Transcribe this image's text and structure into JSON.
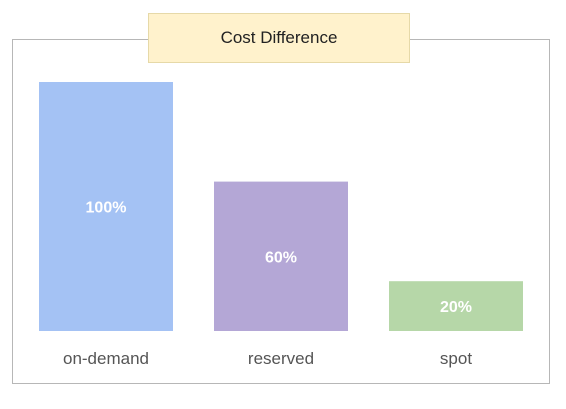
{
  "chart_data": {
    "type": "bar",
    "title": "Cost Difference",
    "categories": [
      "on-demand",
      "reserved",
      "spot"
    ],
    "values": [
      100,
      60,
      20
    ],
    "value_labels": [
      "100%",
      "60%",
      "20%"
    ],
    "colors": [
      "#a4c2f4",
      "#b4a7d6",
      "#b6d7a8"
    ],
    "ylim": [
      0,
      100
    ],
    "grid": false,
    "legend": "none",
    "xlabel": "",
    "ylabel": ""
  }
}
